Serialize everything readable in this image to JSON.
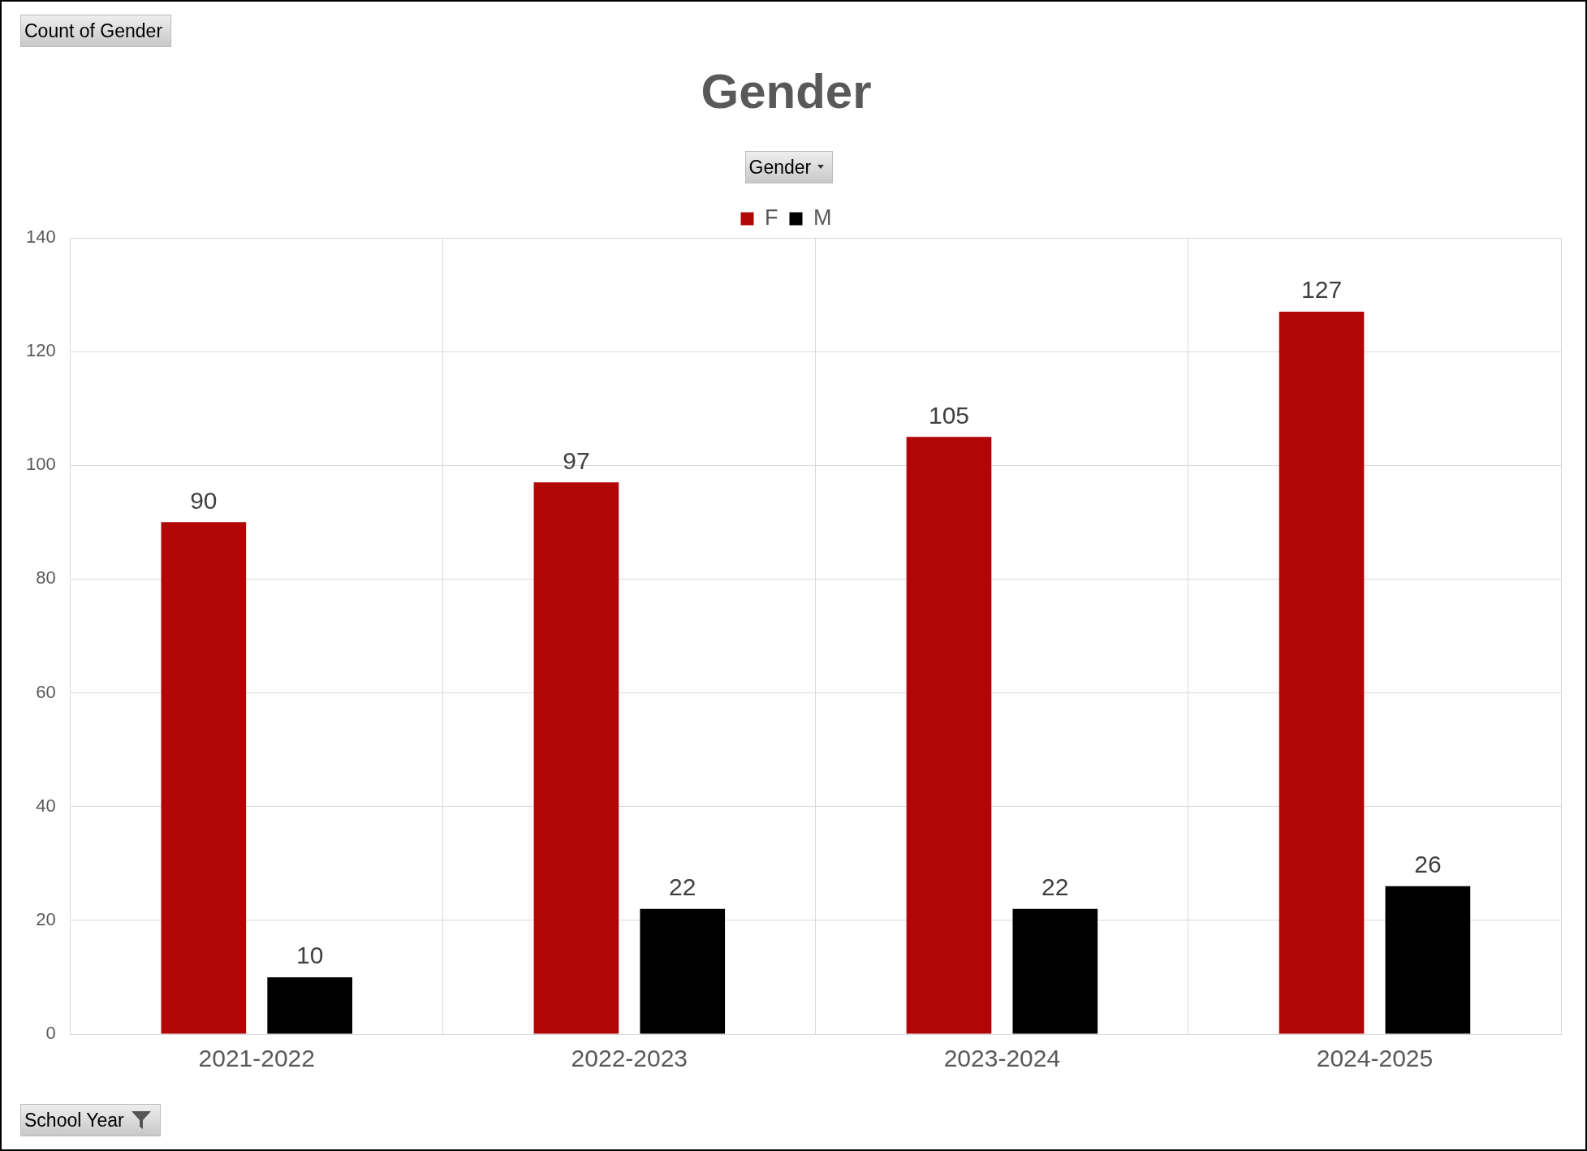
{
  "chart_data": {
    "type": "bar",
    "title": "Gender",
    "legend_title": "Gender",
    "xlabel": "School Year",
    "annotations": [
      "Count of Gender"
    ],
    "categories": [
      "2021-2022",
      "2022-2023",
      "2023-2024",
      "2024-2025"
    ],
    "series": [
      {
        "name": "F",
        "color": "#b10606",
        "values": [
          90,
          97,
          105,
          127
        ]
      },
      {
        "name": "M",
        "color": "#000000",
        "values": [
          10,
          22,
          22,
          26
        ]
      }
    ],
    "ylim": [
      0,
      140
    ],
    "yticks": [
      0,
      20,
      40,
      60,
      80,
      100,
      120,
      140
    ],
    "grid": true,
    "legend": "top",
    "data_labels": true
  }
}
